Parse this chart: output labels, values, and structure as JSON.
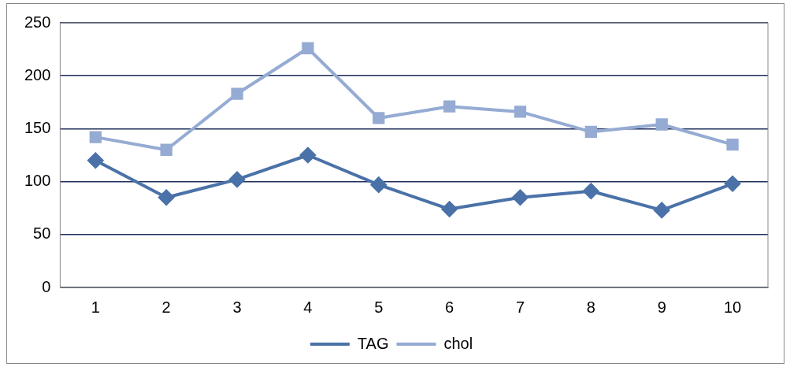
{
  "chart_data": {
    "type": "line",
    "categories": [
      "1",
      "2",
      "3",
      "4",
      "5",
      "6",
      "7",
      "8",
      "9",
      "10"
    ],
    "series": [
      {
        "name": "TAG",
        "color": "#4a72a8",
        "marker": "diamond",
        "values": [
          120,
          85,
          102,
          125,
          97,
          74,
          85,
          91,
          73,
          98
        ]
      },
      {
        "name": "chol",
        "color": "#95abd3",
        "marker": "square",
        "values": [
          142,
          130,
          183,
          226,
          160,
          171,
          166,
          147,
          154,
          135
        ]
      }
    ],
    "ylim": [
      0,
      250
    ],
    "yticks": [
      0,
      50,
      100,
      150,
      200,
      250
    ],
    "grid": "y",
    "legend": "bottom",
    "line_style": "solid"
  }
}
